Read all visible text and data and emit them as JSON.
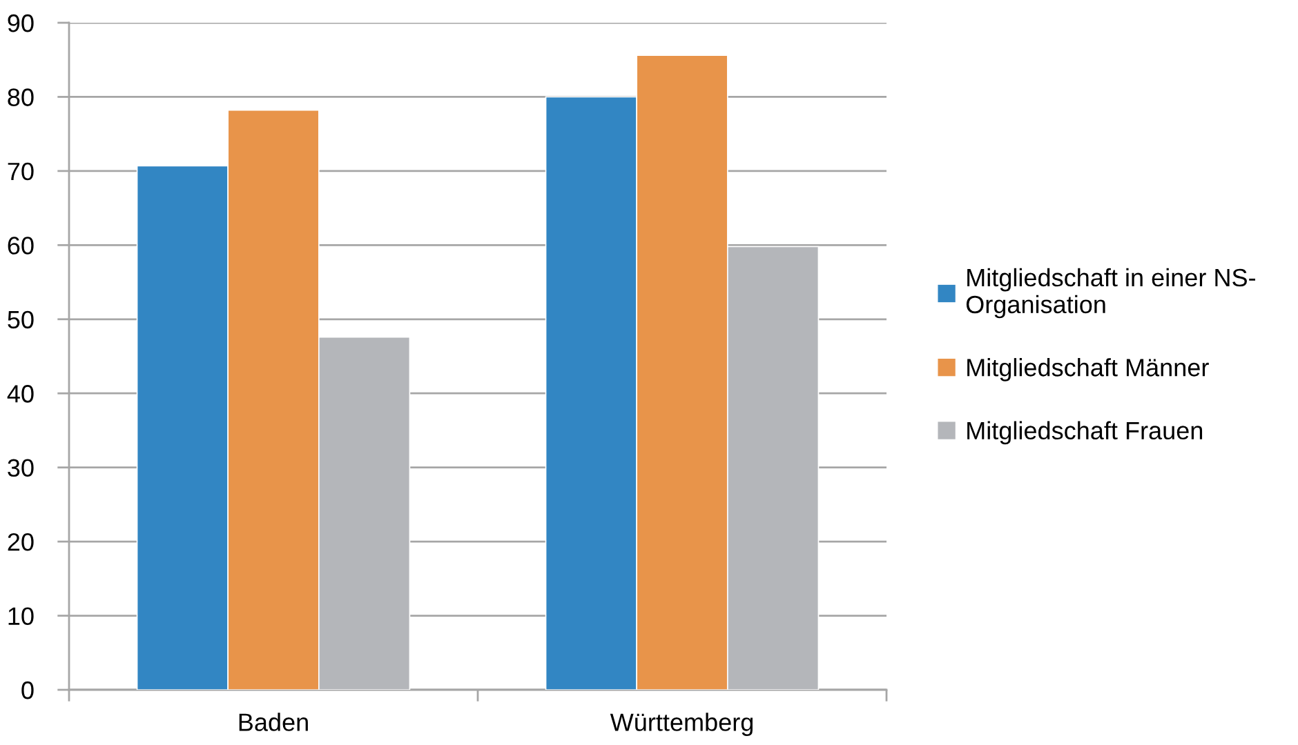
{
  "chart_data": {
    "type": "bar",
    "categories": [
      "Baden",
      "Württemberg"
    ],
    "series": [
      {
        "name": "Mitgliedschaft in einer NS-Organisation",
        "color": "#3286c3",
        "values": [
          70.7,
          80.0
        ]
      },
      {
        "name": "Mitgliedschaft Männer",
        "color": "#e8944a",
        "values": [
          78.2,
          85.6
        ]
      },
      {
        "name": "Mitgliedschaft Frauen",
        "color": "#b4b6ba",
        "values": [
          47.6,
          59.8
        ]
      }
    ],
    "ylim": [
      0,
      90
    ],
    "yticks": [
      0,
      10,
      20,
      30,
      40,
      50,
      60,
      70,
      80,
      90
    ],
    "grid": "y",
    "legend": "right"
  }
}
